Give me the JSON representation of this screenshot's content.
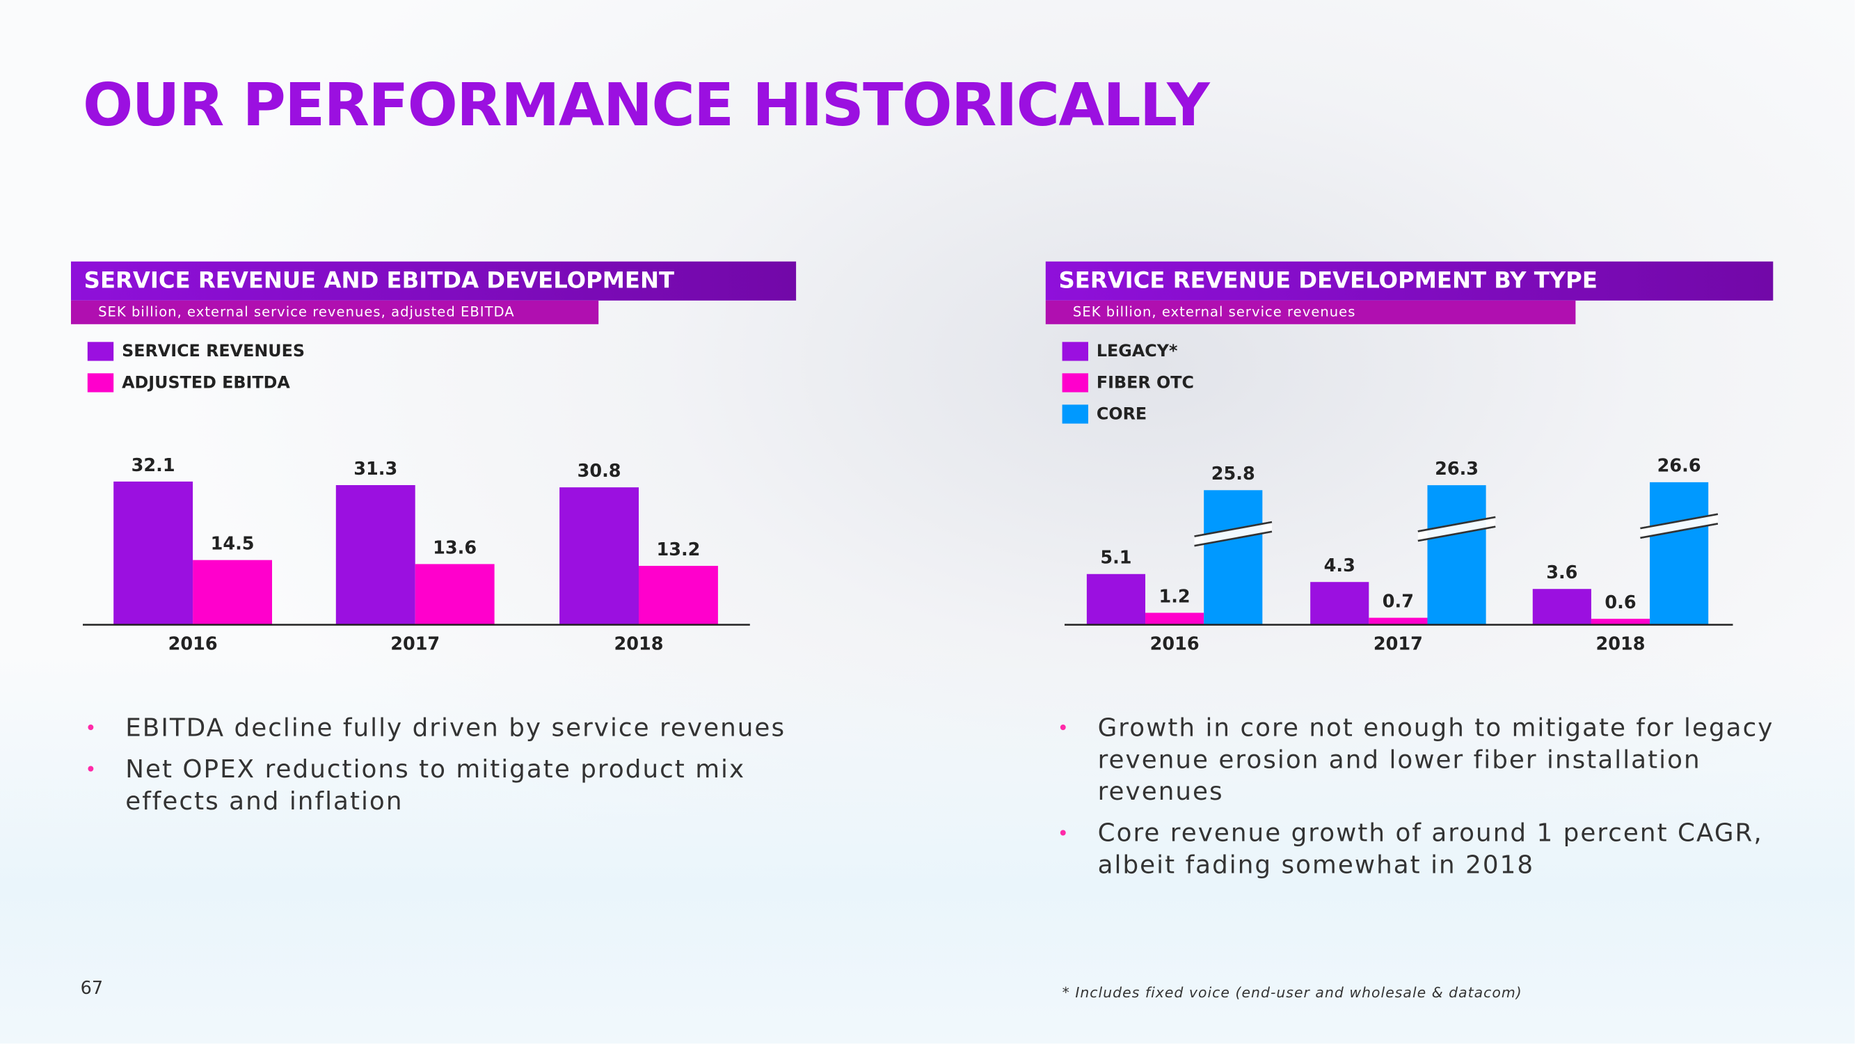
{
  "title": "OUR PERFORMANCE HISTORICALLY",
  "chart_data": [
    {
      "type": "bar",
      "title": "SERVICE REVENUE AND EBITDA DEVELOPMENT",
      "subtitle": "SEK billion, external service revenues, adjusted EBITDA",
      "categories": [
        "2016",
        "2017",
        "2018"
      ],
      "series": [
        {
          "name": "SERVICE REVENUES",
          "color": "#9b10e0",
          "values": [
            32.1,
            31.3,
            30.8
          ]
        },
        {
          "name": "ADJUSTED EBITDA",
          "color": "#ff00cc",
          "values": [
            14.5,
            13.6,
            13.2
          ]
        }
      ]
    },
    {
      "type": "bar",
      "title": "SERVICE REVENUE DEVELOPMENT BY TYPE",
      "subtitle": "SEK billion, external service revenues",
      "categories": [
        "2016",
        "2017",
        "2018"
      ],
      "series": [
        {
          "name": "LEGACY*",
          "color": "#9b10e0",
          "values": [
            5.1,
            4.3,
            3.6
          ]
        },
        {
          "name": "FIBER OTC",
          "color": "#ff00cc",
          "values": [
            1.2,
            0.7,
            0.6
          ]
        },
        {
          "name": "CORE",
          "color": "#0099ff",
          "values": [
            25.8,
            26.3,
            26.6
          ],
          "axis_break": true
        }
      ]
    }
  ],
  "bullets_left": [
    "EBITDA decline fully driven by service revenues",
    "Net OPEX reductions to mitigate product mix effects and inflation"
  ],
  "bullets_right": [
    "Growth in core not enough to mitigate for legacy revenue erosion and lower fiber installation revenues",
    "Core revenue growth of around 1 percent CAGR, albeit fading somewhat in 2018"
  ],
  "footnote": "* Includes fixed voice (end-user and wholesale & datacom)",
  "page_number": "67"
}
